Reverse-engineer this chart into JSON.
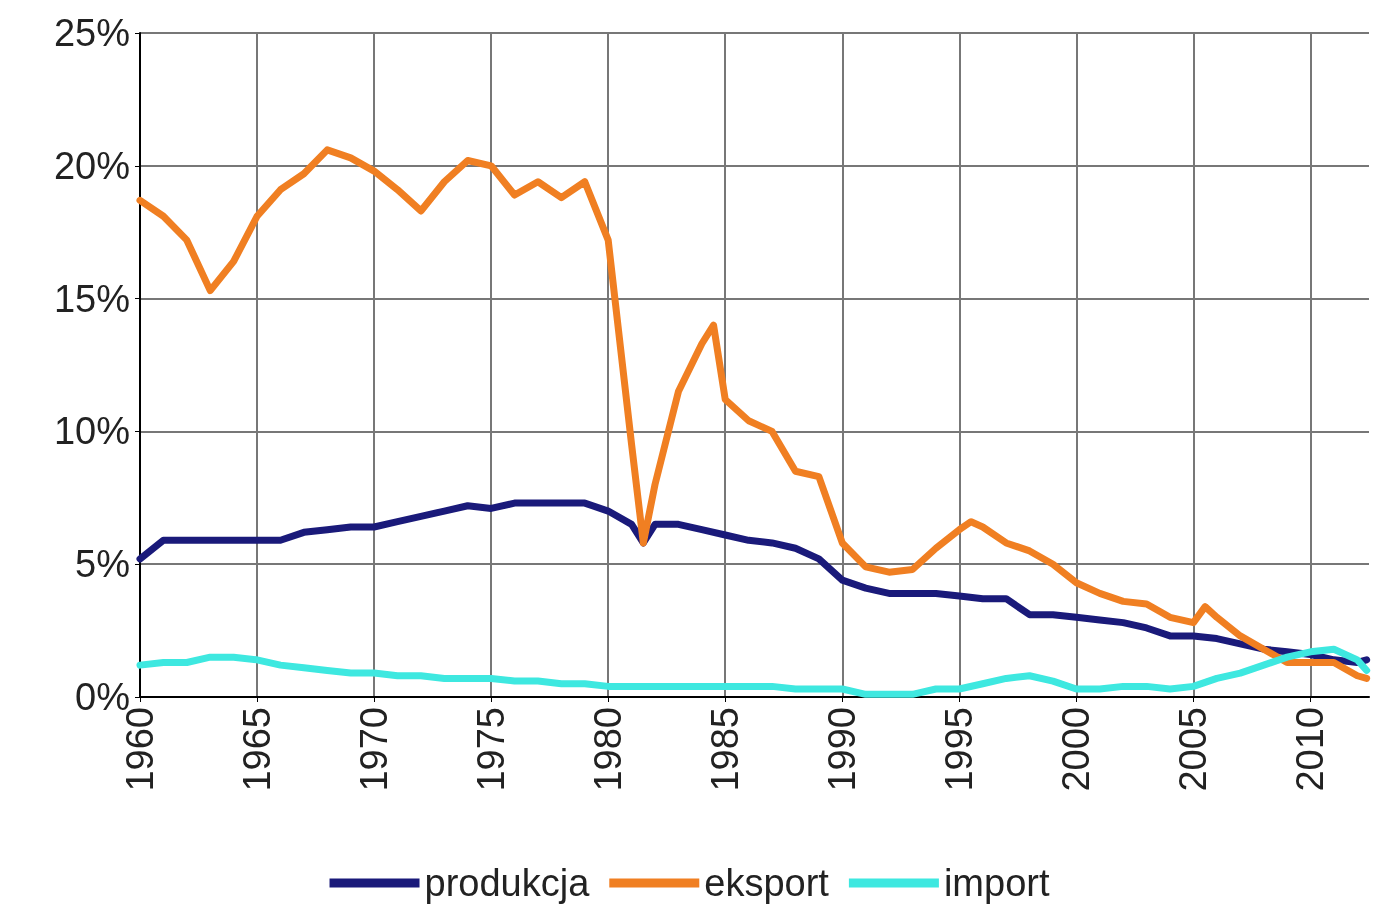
{
  "chart_data": {
    "type": "line",
    "xlim": [
      1960,
      2012.5
    ],
    "xticks": [
      1960,
      1965,
      1970,
      1975,
      1980,
      1985,
      1990,
      1995,
      2000,
      2005,
      2010
    ],
    "ylim": [
      0,
      25
    ],
    "yticks": [
      {
        "value": 0,
        "label": "0%"
      },
      {
        "value": 5,
        "label": "5%"
      },
      {
        "value": 10,
        "label": "10%"
      },
      {
        "value": 15,
        "label": "15%"
      },
      {
        "value": 20,
        "label": "20%"
      },
      {
        "value": 25,
        "label": "25%"
      }
    ],
    "grid": true,
    "legend": "bottom",
    "marker": "none",
    "line_style": "solid",
    "series": [
      {
        "name": "produkcja",
        "color": "#1a1a7a",
        "x": [
          1960,
          1961,
          1962,
          1963,
          1964,
          1965,
          1966,
          1967,
          1968,
          1969,
          1970,
          1971,
          1972,
          1973,
          1974,
          1975,
          1976,
          1977,
          1978,
          1979,
          1980,
          1981,
          1981.5,
          1982,
          1983,
          1984,
          1985,
          1986,
          1987,
          1988,
          1989,
          1990,
          1991,
          1992,
          1993,
          1994,
          1995,
          1996,
          1997,
          1998,
          1999,
          2000,
          2001,
          2002,
          2003,
          2004,
          2005,
          2006,
          2007,
          2008,
          2009,
          2010,
          2011,
          2012,
          2012.4
        ],
        "values": [
          5.2,
          5.9,
          5.9,
          5.9,
          5.9,
          5.9,
          5.9,
          6.2,
          6.3,
          6.4,
          6.4,
          6.6,
          6.8,
          7.0,
          7.2,
          7.1,
          7.3,
          7.3,
          7.3,
          7.3,
          7.0,
          6.5,
          5.8,
          6.5,
          6.5,
          6.3,
          6.1,
          5.9,
          5.8,
          5.6,
          5.2,
          4.4,
          4.1,
          3.9,
          3.9,
          3.9,
          3.8,
          3.7,
          3.7,
          3.1,
          3.1,
          3.0,
          2.9,
          2.8,
          2.6,
          2.3,
          2.3,
          2.2,
          2.0,
          1.8,
          1.7,
          1.6,
          1.4,
          1.3,
          1.4
        ]
      },
      {
        "name": "eksport",
        "color": "#f07f22",
        "x": [
          1960,
          1961,
          1962,
          1963,
          1964,
          1965,
          1966,
          1967,
          1968,
          1969,
          1970,
          1971,
          1972,
          1973,
          1974,
          1975,
          1976,
          1977,
          1978,
          1979,
          1980,
          1981,
          1981.5,
          1982,
          1983,
          1984,
          1984.5,
          1985,
          1986,
          1987,
          1988,
          1989,
          1990,
          1991,
          1992,
          1993,
          1994,
          1995,
          1995.5,
          1996,
          1997,
          1998,
          1999,
          2000,
          2001,
          2002,
          2003,
          2004,
          2005,
          2005.5,
          2006,
          2007,
          2008,
          2009,
          2010,
          2011,
          2012,
          2012.4
        ],
        "values": [
          18.7,
          18.1,
          17.2,
          15.3,
          16.4,
          18.1,
          19.1,
          19.7,
          20.6,
          20.3,
          19.8,
          19.1,
          18.3,
          19.4,
          20.2,
          20.0,
          18.9,
          19.4,
          18.8,
          19.4,
          17.2,
          9.5,
          5.8,
          8.0,
          11.5,
          13.3,
          14.0,
          11.2,
          10.4,
          10.0,
          8.5,
          8.3,
          5.8,
          4.9,
          4.7,
          4.8,
          5.6,
          6.3,
          6.6,
          6.4,
          5.8,
          5.5,
          5.0,
          4.3,
          3.9,
          3.6,
          3.5,
          3.0,
          2.8,
          3.4,
          3.0,
          2.3,
          1.8,
          1.3,
          1.3,
          1.3,
          0.8,
          0.7
        ]
      },
      {
        "name": "import",
        "color": "#3ee8e0",
        "x": [
          1960,
          1961,
          1962,
          1963,
          1964,
          1965,
          1966,
          1967,
          1968,
          1969,
          1970,
          1971,
          1972,
          1973,
          1974,
          1975,
          1976,
          1977,
          1978,
          1979,
          1980,
          1981,
          1982,
          1983,
          1984,
          1985,
          1986,
          1987,
          1988,
          1989,
          1990,
          1991,
          1992,
          1993,
          1994,
          1995,
          1996,
          1997,
          1998,
          1999,
          2000,
          2001,
          2002,
          2003,
          2004,
          2005,
          2006,
          2007,
          2008,
          2009,
          2010,
          2011,
          2012,
          2012.4
        ],
        "values": [
          1.2,
          1.3,
          1.3,
          1.5,
          1.5,
          1.4,
          1.2,
          1.1,
          1.0,
          0.9,
          0.9,
          0.8,
          0.8,
          0.7,
          0.7,
          0.7,
          0.6,
          0.6,
          0.5,
          0.5,
          0.4,
          0.4,
          0.4,
          0.4,
          0.4,
          0.4,
          0.4,
          0.4,
          0.3,
          0.3,
          0.3,
          0.1,
          0.1,
          0.1,
          0.3,
          0.3,
          0.5,
          0.7,
          0.8,
          0.6,
          0.3,
          0.3,
          0.4,
          0.4,
          0.3,
          0.4,
          0.7,
          0.9,
          1.2,
          1.5,
          1.7,
          1.8,
          1.4,
          1.0
        ]
      }
    ]
  }
}
